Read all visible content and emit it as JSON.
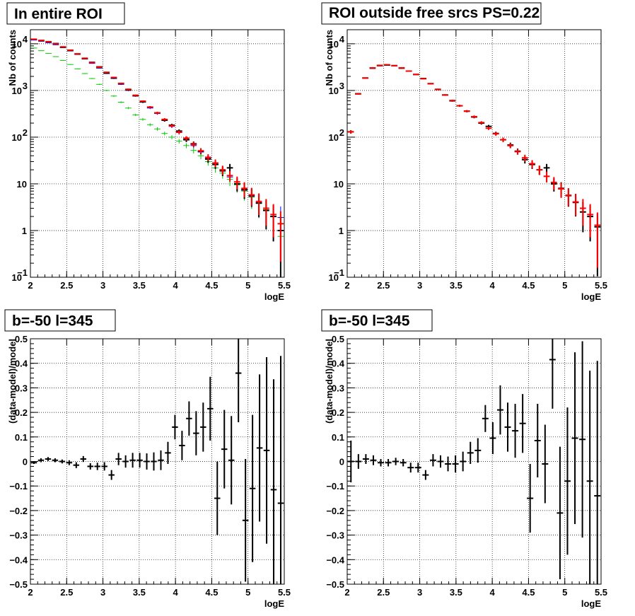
{
  "chart_data": [
    {
      "type": "scatter",
      "title": "In entire ROI",
      "xlabel": "logE",
      "ylabel": "Nb of counts",
      "xlim": [
        2,
        5.5
      ],
      "ylim": [
        0.1,
        20000
      ],
      "yscale": "log",
      "grid": true,
      "x_ticks": [
        "2",
        "2.5",
        "3",
        "3.5",
        "4",
        "4.5",
        "5",
        "5.5"
      ],
      "y_ticks": [
        {
          "value": 0.1,
          "label": "10",
          "exp": "−1"
        },
        {
          "value": 1,
          "label": "1",
          "exp": ""
        },
        {
          "value": 10,
          "label": "10",
          "exp": ""
        },
        {
          "value": 100,
          "label": "10",
          "exp": "2"
        },
        {
          "value": 1000,
          "label": "10",
          "exp": "3"
        },
        {
          "value": 10000,
          "label": "10",
          "exp": "4"
        }
      ],
      "series": [
        {
          "color": "#0000ff",
          "values": [
            12000,
            11300,
            10500,
            9500,
            8300,
            7000,
            5900,
            4700,
            3800,
            3000,
            2300,
            1800,
            1350,
            1000,
            760,
            560,
            420,
            320,
            230,
            170,
            125,
            90,
            66,
            48,
            35,
            26,
            19,
            14,
            10,
            7.3,
            5.3,
            3.8,
            2.7,
            2.0,
            1.9
          ]
        },
        {
          "color": "#00cc00",
          "values": [
            8100,
            7100,
            6200,
            5300,
            4400,
            3600,
            2900,
            2300,
            1800,
            1350,
            1000,
            760,
            560,
            420,
            300,
            240,
            185,
            150,
            120,
            100,
            82,
            66,
            52,
            40,
            30,
            22,
            17,
            12.5,
            9.5,
            7,
            5.2,
            3.8,
            2.8,
            2.0,
            0.75
          ]
        },
        {
          "color": "#000000",
          "values": [
            12500,
            11700,
            11100,
            10100,
            8400,
            7200,
            6000,
            4800,
            4000,
            3200,
            2350,
            1850,
            1400,
            1030,
            770,
            570,
            440,
            330,
            230,
            180,
            135,
            88,
            72,
            50,
            34,
            26,
            19,
            22,
            10,
            7.5,
            5.6,
            3.9,
            2.7,
            2.0,
            1.0
          ]
        },
        {
          "color": "#ff0000",
          "values": [
            12500,
            11800,
            11000,
            9900,
            8600,
            7300,
            6100,
            4900,
            3950,
            3150,
            2450,
            1900,
            1420,
            1060,
            790,
            590,
            440,
            330,
            240,
            175,
            128,
            95,
            70,
            51,
            37,
            28,
            20,
            15,
            11,
            8.0,
            5.8,
            4.2,
            3.0,
            2.2,
            1.4
          ]
        }
      ]
    },
    {
      "type": "scatter",
      "title": "ROI outside free srcs PS=0.22",
      "xlabel": "logE",
      "ylabel": "Nb of counts",
      "xlim": [
        2,
        5.5
      ],
      "ylim": [
        0.1,
        20000
      ],
      "yscale": "log",
      "grid": true,
      "x_ticks": [
        "2",
        "2.5",
        "3",
        "3.5",
        "4",
        "4.5",
        "5",
        "5.5"
      ],
      "y_ticks": [
        {
          "value": 0.1,
          "label": "10",
          "exp": "−1"
        },
        {
          "value": 1,
          "label": "1",
          "exp": ""
        },
        {
          "value": 10,
          "label": "10",
          "exp": ""
        },
        {
          "value": 100,
          "label": "10",
          "exp": "2"
        },
        {
          "value": 1000,
          "label": "10",
          "exp": "3"
        },
        {
          "value": 10000,
          "label": "10",
          "exp": "4"
        }
      ],
      "series": [
        {
          "color": "#000000",
          "values": [
            130,
            850,
            1850,
            3000,
            3400,
            3500,
            3400,
            3000,
            2600,
            2200,
            1800,
            1400,
            1050,
            800,
            600,
            470,
            360,
            270,
            200,
            170,
            120,
            88,
            68,
            50,
            33,
            26,
            20,
            22,
            10,
            8.0,
            5.6,
            4.0,
            2.5,
            2.0,
            1.2
          ]
        },
        {
          "color": "#ff0000",
          "values": [
            130,
            840,
            1840,
            3050,
            3450,
            3550,
            3400,
            3050,
            2600,
            2200,
            1780,
            1390,
            1060,
            800,
            610,
            470,
            360,
            275,
            205,
            155,
            118,
            88,
            66,
            49,
            36,
            27,
            20,
            14.5,
            10.7,
            7.8,
            5.7,
            4.1,
            3.0,
            2.2,
            1.3
          ]
        }
      ]
    },
    {
      "type": "scatter",
      "title": "b=-50 l=345",
      "xlabel": "logE",
      "ylabel": "(data-model)/model",
      "xlim": [
        2,
        5.5
      ],
      "ylim": [
        -0.5,
        0.5
      ],
      "grid": true,
      "x_ticks": [
        "2",
        "2.5",
        "3",
        "3.5",
        "4",
        "4.5",
        "5",
        "5.5"
      ],
      "y_ticks": [
        "0.5",
        "0.4",
        "0.3",
        "0.2",
        "0.1",
        "0",
        "−0.1",
        "−0.2",
        "−0.3",
        "−0.4",
        "−0.5"
      ],
      "series": [
        {
          "color": "#000000",
          "values": [
            -0.005,
            0.005,
            0.01,
            0.005,
            0,
            -0.005,
            -0.015,
            0.01,
            -0.02,
            -0.02,
            -0.02,
            -0.055,
            0.01,
            0.0,
            0.005,
            0.005,
            0.0,
            0.0,
            0.005,
            0.035,
            0.14,
            0.065,
            0.175,
            0.115,
            0.14,
            0.215,
            -0.15,
            0.05,
            0.005,
            0.36,
            -0.24,
            -0.11,
            0.055,
            0.045,
            -0.115,
            -0.17
          ],
          "errors": [
            0.005,
            0.008,
            0.008,
            0.008,
            0.008,
            0.01,
            0.012,
            0.012,
            0.013,
            0.015,
            0.017,
            0.02,
            0.025,
            0.025,
            0.03,
            0.03,
            0.033,
            0.037,
            0.04,
            0.045,
            0.05,
            0.06,
            0.07,
            0.09,
            0.1,
            0.13,
            0.15,
            0.16,
            0.18,
            0.2,
            0.25,
            0.3,
            0.3,
            0.38,
            0.45,
            0.6
          ]
        }
      ]
    },
    {
      "type": "scatter",
      "title": "b=-50 l=345",
      "xlabel": "logE",
      "ylabel": "(data-model)/model",
      "xlim": [
        2,
        5.5
      ],
      "ylim": [
        -0.5,
        0.5
      ],
      "grid": true,
      "x_ticks": [
        "2",
        "2.5",
        "3",
        "3.5",
        "4",
        "4.5",
        "5",
        "5.5"
      ],
      "y_ticks": [
        "0.5",
        "0.4",
        "0.3",
        "0.2",
        "0.1",
        "0",
        "−0.1",
        "−0.2",
        "−0.3",
        "−0.4",
        "−0.5"
      ],
      "series": [
        {
          "color": "#000000",
          "values": [
            0.0,
            0.0,
            0.01,
            0.005,
            -0.005,
            -0.005,
            0.0,
            -0.005,
            -0.025,
            -0.025,
            -0.055,
            0.005,
            0.0,
            -0.01,
            -0.01,
            0.0,
            0.035,
            0.045,
            0.175,
            0.095,
            0.21,
            0.14,
            0.125,
            0.155,
            -0.15,
            0.085,
            -0.01,
            0.415,
            -0.21,
            -0.08,
            0.095,
            0.09,
            -0.08,
            -0.14
          ],
          "errors": [
            0.085,
            0.03,
            0.02,
            0.02,
            0.015,
            0.015,
            0.015,
            0.015,
            0.02,
            0.02,
            0.02,
            0.025,
            0.025,
            0.03,
            0.035,
            0.04,
            0.045,
            0.05,
            0.055,
            0.065,
            0.1,
            0.1,
            0.11,
            0.12,
            0.14,
            0.15,
            0.16,
            0.2,
            0.27,
            0.3,
            0.35,
            0.4,
            0.45,
            0.55
          ]
        }
      ]
    }
  ]
}
